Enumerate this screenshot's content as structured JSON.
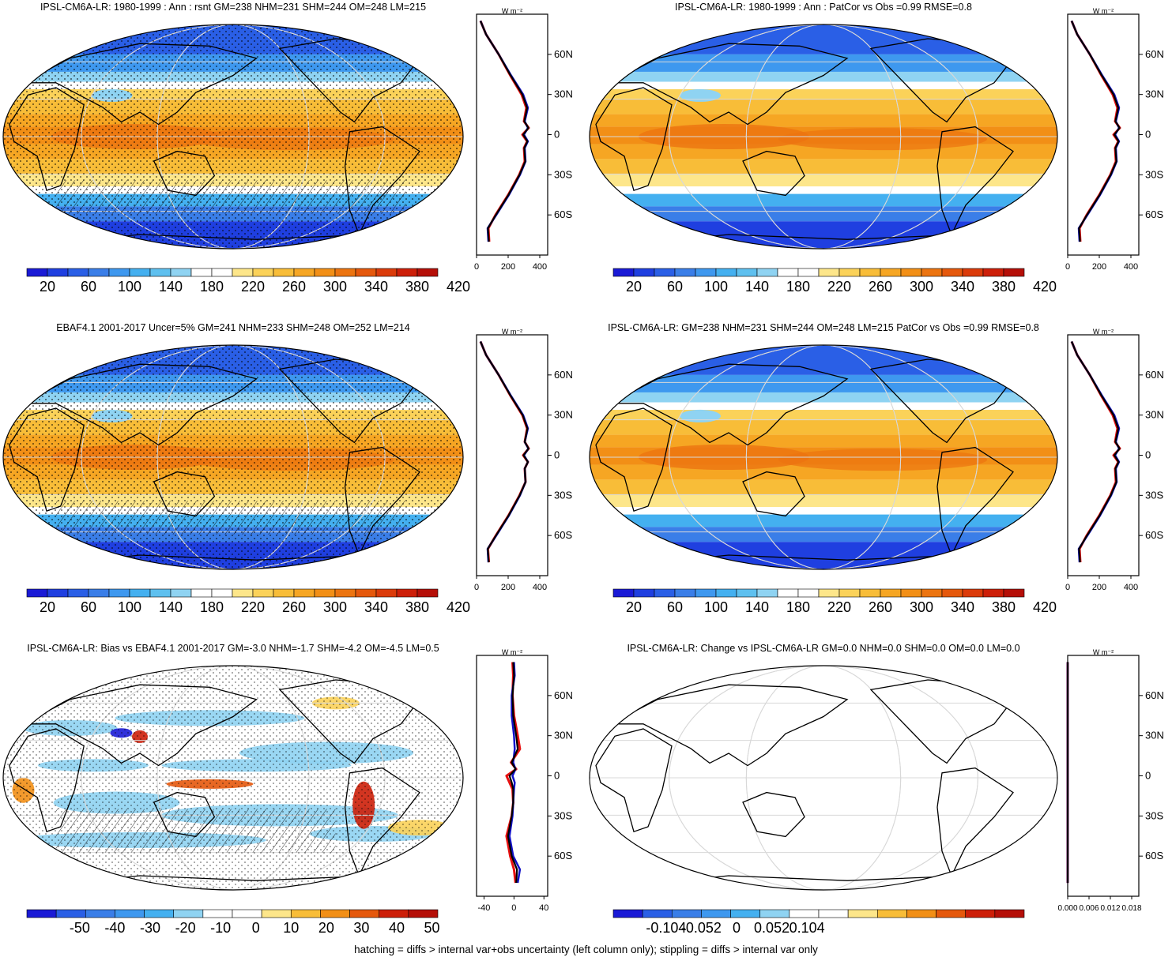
{
  "footnote": "hatching = diffs > internal var+obs uncertainty (left column only); stippling = diffs > internal var only",
  "zonal_unit": "W m⁻²",
  "lat_labels": [
    "60N",
    "30N",
    "0",
    "30S",
    "60S"
  ],
  "colors": {
    "ramp_abs": [
      "#1a1ad6",
      "#1f3fe0",
      "#2a5fe6",
      "#3a7ee8",
      "#3e98ef",
      "#44b0f0",
      "#5ec0ef",
      "#8fd3f2",
      "#ffffff",
      "#ffffff",
      "#fde68a",
      "#fbd259",
      "#f8bd38",
      "#f6a623",
      "#f28f16",
      "#ec7410",
      "#e5580c",
      "#db3b0a",
      "#cd1f09",
      "#b50f08"
    ],
    "ramp_diff": [
      "#1a1ad6",
      "#2a5fe6",
      "#3a7ee8",
      "#3e98ef",
      "#44b0f0",
      "#8fd3f2",
      "#ffffff",
      "#ffffff",
      "#fde68a",
      "#f8bd38",
      "#f28f16",
      "#e5580c",
      "#cd1f09",
      "#b50f08"
    ],
    "model_line": "#e81010",
    "obs_line": "#1010c8",
    "mean_line": "#000000"
  },
  "panels": [
    {
      "id": "model-climatology",
      "title": "IPSL-CM6A-LR: 1980-1999 : Ann : rsnt GM=238 NHM=231 SHM=244 OM=248 LM=215",
      "colorbar_ticks": [
        "20",
        "60",
        "100",
        "140",
        "180",
        "220",
        "260",
        "300",
        "340",
        "380",
        "420"
      ],
      "zonal_ticks": [
        "0",
        "200",
        "400"
      ]
    },
    {
      "id": "model-pattern",
      "title": "IPSL-CM6A-LR: 1980-1999 : Ann : PatCor vs Obs =0.99 RMSE=0.8",
      "colorbar_ticks": [
        "20",
        "60",
        "100",
        "140",
        "180",
        "220",
        "260",
        "300",
        "340",
        "380",
        "420"
      ],
      "zonal_ticks": [
        "0",
        "200",
        "400"
      ]
    },
    {
      "id": "obs-climatology",
      "title": "EBAF4.1 2001-2017 Uncer=5% GM=241 NHM=233 SHM=248 OM=252 LM=214",
      "colorbar_ticks": [
        "20",
        "60",
        "100",
        "140",
        "180",
        "220",
        "260",
        "300",
        "340",
        "380",
        "420"
      ],
      "zonal_ticks": [
        "0",
        "200",
        "400"
      ]
    },
    {
      "id": "model-summary",
      "title": "IPSL-CM6A-LR: GM=238 NHM=231 SHM=244 OM=248 LM=215 PatCor vs Obs =0.99 RMSE=0.8",
      "colorbar_ticks": [
        "20",
        "60",
        "100",
        "140",
        "180",
        "220",
        "260",
        "300",
        "340",
        "380",
        "420"
      ],
      "zonal_ticks": [
        "0",
        "200",
        "400"
      ]
    },
    {
      "id": "bias",
      "title": "IPSL-CM6A-LR: Bias vs EBAF4.1 2001-2017 GM=-3.0 NHM=-1.7 SHM=-4.2 OM=-4.5 LM=0.5",
      "colorbar_ticks": [
        "-50",
        "-40",
        "-30",
        "-20",
        "-10",
        "0",
        "10",
        "20",
        "30",
        "40",
        "50"
      ],
      "zonal_ticks": [
        "-40",
        "0",
        "40"
      ]
    },
    {
      "id": "change",
      "title": "IPSL-CM6A-LR: Change vs IPSL-CM6A-LR GM=0.0 NHM=0.0 SHM=0.0 OM=0.0 LM=0.0",
      "colorbar_ticks": [
        "-0.104",
        "-0.052",
        "0",
        "0.052",
        "0.104"
      ],
      "zonal_ticks": [
        "0.000",
        "0.006",
        "0.012",
        "0.018"
      ]
    }
  ],
  "chart_data": [
    {
      "type": "heatmap",
      "title": "IPSL-CM6A-LR: 1980-1999 : Ann : rsnt GM=238 NHM=231 SHM=244 OM=248 LM=215",
      "colorbar": {
        "min": 0,
        "max": 440,
        "step": 20,
        "tick_labels": [
          "20",
          "60",
          "100",
          "140",
          "180",
          "220",
          "260",
          "300",
          "340",
          "380",
          "420"
        ]
      },
      "zonal_mean": {
        "xlim": [
          0,
          450
        ],
        "x_ticks": [
          0,
          200,
          400
        ],
        "ylim": [
          -90,
          90
        ],
        "y_ticks": [
          "60N",
          "30N",
          "0",
          "30S",
          "60S"
        ],
        "lat": [
          85,
          75,
          60,
          45,
          30,
          20,
          10,
          5,
          0,
          -5,
          -10,
          -20,
          -30,
          -45,
          -60,
          -70,
          -80
        ],
        "series": [
          {
            "values": [
              25,
              60,
              140,
              210,
              285,
              315,
              300,
              330,
              290,
              320,
              300,
              305,
              270,
              200,
              120,
              75,
              80
            ]
          },
          {
            "values": [
              25,
              60,
              140,
              215,
              295,
              325,
              305,
              325,
              300,
              325,
              305,
              310,
              275,
              205,
              125,
              70,
              75
            ]
          },
          {
            "values": [
              25,
              60,
              140,
              212,
              290,
              320,
              302,
              328,
              295,
              322,
              302,
              308,
              272,
              202,
              122,
              72,
              78
            ]
          }
        ]
      }
    },
    {
      "type": "heatmap",
      "title": "IPSL-CM6A-LR: 1980-1999 : Ann : PatCor vs Obs =0.99 RMSE=0.8",
      "colorbar": {
        "min": 0,
        "max": 440,
        "step": 20,
        "tick_labels": [
          "20",
          "60",
          "100",
          "140",
          "180",
          "220",
          "260",
          "300",
          "340",
          "380",
          "420"
        ]
      },
      "zonal_mean": {
        "xlim": [
          0,
          450
        ],
        "x_ticks": [
          0,
          200,
          400
        ],
        "ylim": [
          -90,
          90
        ],
        "y_ticks": [
          "60N",
          "30N",
          "0",
          "30S",
          "60S"
        ],
        "lat": [
          85,
          75,
          60,
          45,
          30,
          20,
          10,
          5,
          0,
          -5,
          -10,
          -20,
          -30,
          -45,
          -60,
          -70,
          -80
        ],
        "series": [
          {
            "values": [
              25,
              60,
              140,
              210,
              285,
              315,
              300,
              330,
              290,
              320,
              300,
              305,
              270,
              200,
              120,
              75,
              80
            ]
          },
          {
            "values": [
              25,
              60,
              140,
              215,
              295,
              325,
              305,
              325,
              300,
              325,
              305,
              310,
              275,
              205,
              125,
              70,
              75
            ]
          },
          {
            "values": [
              25,
              60,
              140,
              212,
              290,
              320,
              302,
              328,
              295,
              322,
              302,
              308,
              272,
              202,
              122,
              72,
              78
            ]
          }
        ]
      }
    },
    {
      "type": "heatmap",
      "title": "EBAF4.1 2001-2017 Uncer=5% GM=241 NHM=233 SHM=248 OM=252 LM=214",
      "colorbar": {
        "min": 0,
        "max": 440,
        "step": 20,
        "tick_labels": [
          "20",
          "60",
          "100",
          "140",
          "180",
          "220",
          "260",
          "300",
          "340",
          "380",
          "420"
        ]
      },
      "zonal_mean": {
        "xlim": [
          0,
          450
        ],
        "x_ticks": [
          0,
          200,
          400
        ],
        "ylim": [
          -90,
          90
        ],
        "y_ticks": [
          "60N",
          "30N",
          "0",
          "30S",
          "60S"
        ],
        "lat": [
          85,
          75,
          60,
          45,
          30,
          20,
          10,
          5,
          0,
          -5,
          -10,
          -20,
          -30,
          -45,
          -60,
          -70,
          -80
        ],
        "series": [
          {
            "values": [
              25,
              60,
              140,
              212,
              290,
              320,
              305,
              330,
              295,
              325,
              305,
              310,
              272,
              202,
              122,
              72,
              78
            ]
          },
          {
            "values": [
              25,
              60,
              140,
              215,
              295,
              325,
              305,
              328,
              300,
              325,
              305,
              310,
              275,
              205,
              125,
              70,
              75
            ]
          },
          {
            "values": [
              25,
              60,
              140,
              213,
              292,
              322,
              305,
              329,
              297,
              325,
              305,
              310,
              273,
              203,
              123,
              71,
              77
            ]
          }
        ]
      }
    },
    {
      "type": "heatmap",
      "title": "IPSL-CM6A-LR: GM=238 NHM=231 SHM=244 OM=248 LM=215 PatCor vs Obs =0.99 RMSE=0.8",
      "colorbar": {
        "min": 0,
        "max": 440,
        "step": 20,
        "tick_labels": [
          "20",
          "60",
          "100",
          "140",
          "180",
          "220",
          "260",
          "300",
          "340",
          "380",
          "420"
        ]
      },
      "zonal_mean": {
        "xlim": [
          0,
          450
        ],
        "x_ticks": [
          0,
          200,
          400
        ],
        "ylim": [
          -90,
          90
        ],
        "y_ticks": [
          "60N",
          "30N",
          "0",
          "30S",
          "60S"
        ],
        "lat": [
          85,
          75,
          60,
          45,
          30,
          20,
          10,
          5,
          0,
          -5,
          -10,
          -20,
          -30,
          -45,
          -60,
          -70,
          -80
        ],
        "series": [
          {
            "values": [
              25,
              60,
              140,
              210,
              285,
              315,
              300,
              330,
              290,
              320,
              300,
              305,
              270,
              200,
              120,
              75,
              80
            ]
          },
          {
            "values": [
              25,
              60,
              140,
              215,
              295,
              325,
              305,
              325,
              300,
              325,
              305,
              310,
              275,
              205,
              125,
              70,
              75
            ]
          },
          {
            "values": [
              25,
              60,
              140,
              212,
              290,
              320,
              302,
              328,
              295,
              322,
              302,
              308,
              272,
              202,
              122,
              72,
              78
            ]
          }
        ]
      }
    },
    {
      "type": "heatmap",
      "title": "IPSL-CM6A-LR: Bias vs EBAF4.1 2001-2017 GM=-3.0 NHM=-1.7 SHM=-4.2 OM=-4.5 LM=0.5",
      "colorbar": {
        "min": -55,
        "max": 55,
        "step": 5,
        "tick_labels": [
          "-50",
          "-40",
          "-30",
          "-20",
          "-10",
          "0",
          "10",
          "20",
          "30",
          "40",
          "50"
        ]
      },
      "zonal_mean": {
        "xlim": [
          -50,
          45
        ],
        "x_ticks": [
          -40,
          0,
          40
        ],
        "ylim": [
          -90,
          90
        ],
        "y_ticks": [
          "60N",
          "30N",
          "0",
          "30S",
          "60S"
        ],
        "lat": [
          85,
          75,
          60,
          45,
          30,
          20,
          10,
          5,
          0,
          -5,
          -10,
          -20,
          -30,
          -45,
          -60,
          -70,
          -80
        ],
        "series": [
          {
            "values": [
              -2,
              -1,
              -2,
              0,
              5,
              8,
              -4,
              3,
              -10,
              -6,
              -2,
              -1,
              -3,
              -10,
              -5,
              0,
              2
            ]
          },
          {
            "values": [
              0,
              1,
              -3,
              -3,
              0,
              1,
              -1,
              2,
              -2,
              1,
              0,
              -1,
              -2,
              -6,
              -1,
              8,
              5
            ]
          },
          {
            "values": [
              -1,
              0,
              -2,
              -1,
              3,
              5,
              -3,
              2,
              -6,
              -3,
              -1,
              -1,
              -3,
              -8,
              -3,
              4,
              3
            ]
          }
        ]
      }
    },
    {
      "type": "heatmap",
      "title": "IPSL-CM6A-LR: Change vs IPSL-CM6A-LR GM=0.0 NHM=0.0 SHM=0.0 OM=0.0 LM=0.0",
      "colorbar": {
        "min": -0.13,
        "max": 0.13,
        "step": 0.013,
        "tick_labels": [
          "-0.104",
          "-0.052",
          "0",
          "0.052",
          "0.104"
        ]
      },
      "zonal_mean": {
        "xlim": [
          0,
          0.02
        ],
        "x_ticks": [
          0.0,
          0.006,
          0.012,
          0.018
        ],
        "ylim": [
          -90,
          90
        ],
        "y_ticks": [
          "60N",
          "30N",
          "0",
          "30S",
          "60S"
        ],
        "lat": [
          85,
          75,
          60,
          45,
          30,
          20,
          10,
          5,
          0,
          -5,
          -10,
          -20,
          -30,
          -45,
          -60,
          -70,
          -80
        ],
        "series": [
          {
            "values": [
              0,
              0,
              0,
              0,
              0,
              0,
              0,
              0,
              0,
              0,
              0,
              0,
              0,
              0,
              0,
              0,
              0
            ]
          },
          {
            "values": [
              0,
              0,
              0,
              0,
              0,
              0,
              0,
              0,
              0,
              0,
              0,
              0,
              0,
              0,
              0,
              0,
              0
            ]
          },
          {
            "values": [
              0,
              0,
              0,
              0,
              0,
              0,
              0,
              0,
              0,
              0,
              0,
              0,
              0,
              0,
              0,
              0,
              0
            ]
          }
        ]
      }
    }
  ]
}
